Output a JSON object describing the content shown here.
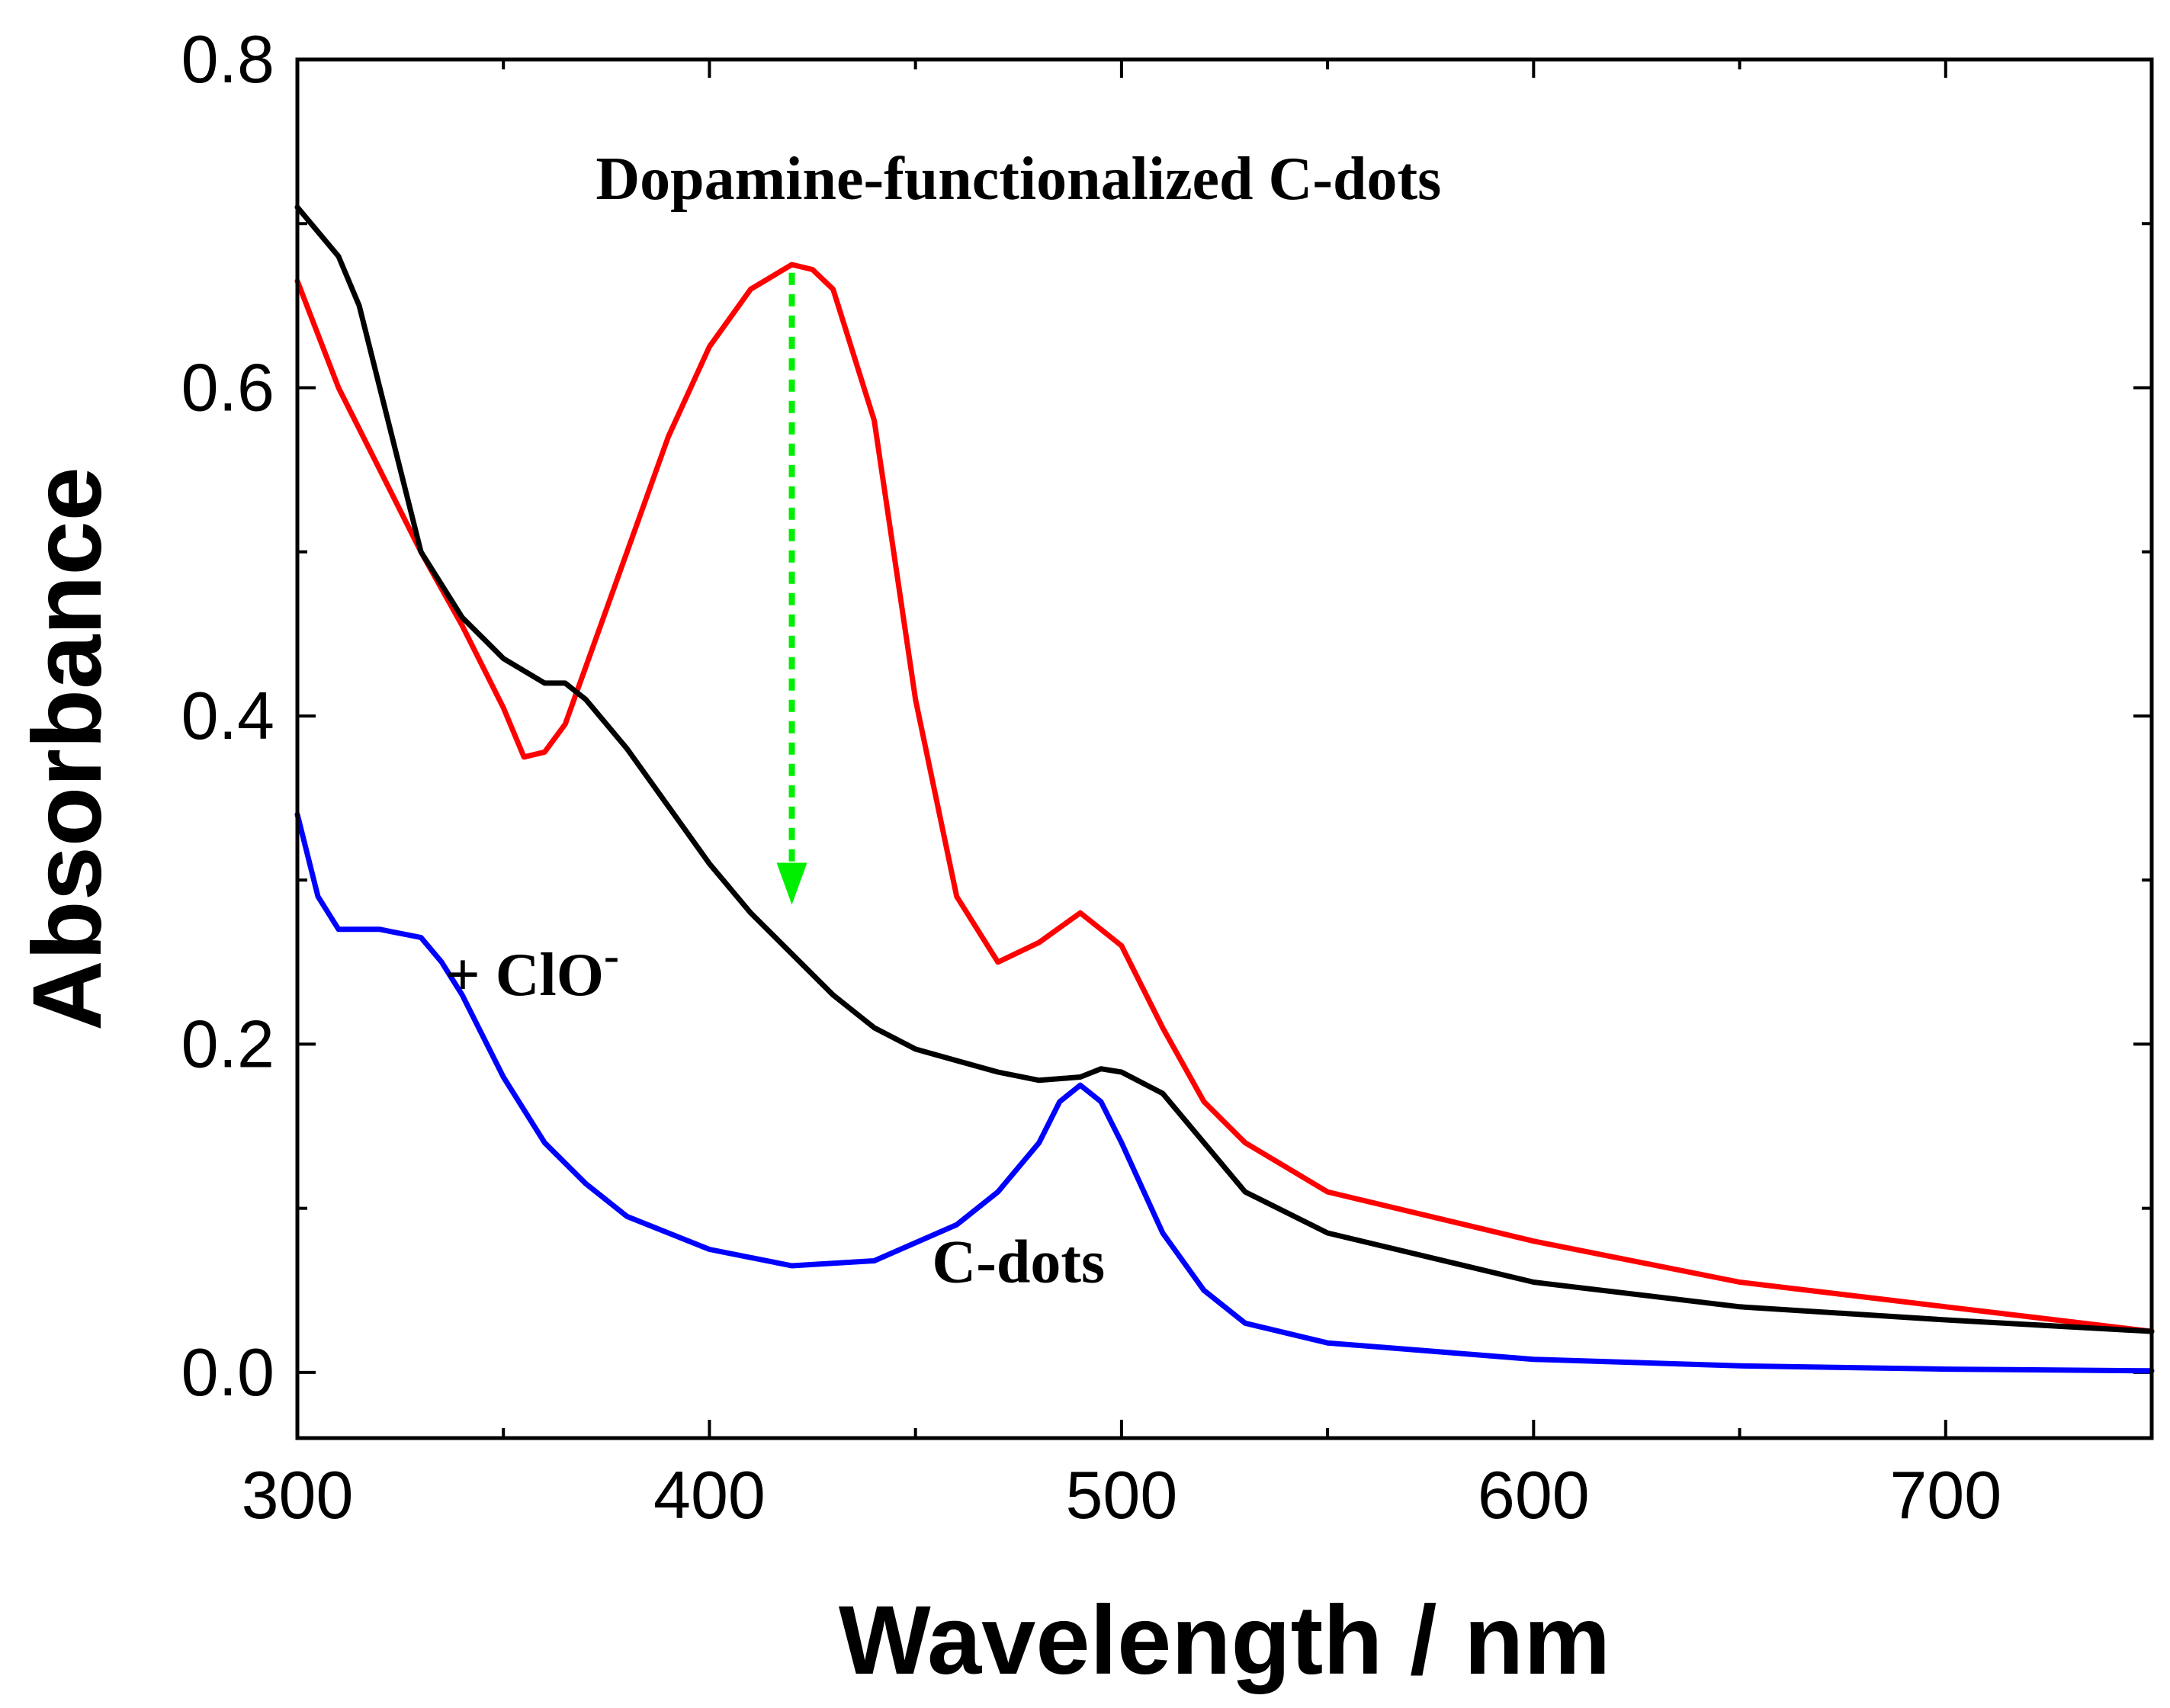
{
  "chart_data": {
    "type": "line",
    "title": "",
    "xlabel": "Wavelength / nm",
    "ylabel": "Absorbance",
    "xlim": [
      300,
      750
    ],
    "ylim": [
      -0.04,
      0.8
    ],
    "xticks": [
      300,
      400,
      500,
      600,
      700
    ],
    "yticks": [
      0.0,
      0.2,
      0.4,
      0.6,
      0.8
    ],
    "xtick_labels": [
      "300",
      "400",
      "500",
      "600",
      "700"
    ],
    "ytick_labels": [
      "0.0",
      "0.2",
      "0.4",
      "0.6",
      "0.8"
    ],
    "x_minor_step": 50,
    "y_minor_step": 0.1,
    "grid": false,
    "series": [
      {
        "name": "Dopamine-functionalized C-dots",
        "color": "#ff0000",
        "x": [
          300,
          310,
          320,
          330,
          340,
          350,
          355,
          360,
          365,
          370,
          380,
          390,
          400,
          410,
          420,
          425,
          430,
          440,
          450,
          460,
          470,
          480,
          490,
          500,
          510,
          520,
          530,
          550,
          600,
          650,
          700,
          750
        ],
        "y": [
          0.665,
          0.6,
          0.55,
          0.5,
          0.455,
          0.405,
          0.375,
          0.378,
          0.395,
          0.43,
          0.5,
          0.57,
          0.625,
          0.66,
          0.675,
          0.672,
          0.66,
          0.58,
          0.41,
          0.29,
          0.25,
          0.262,
          0.28,
          0.26,
          0.21,
          0.165,
          0.14,
          0.11,
          0.08,
          0.055,
          0.04,
          0.025
        ]
      },
      {
        "name": "+ ClO-",
        "color": "#000000",
        "x": [
          300,
          310,
          315,
          320,
          325,
          330,
          340,
          350,
          360,
          365,
          370,
          380,
          390,
          400,
          410,
          420,
          430,
          440,
          450,
          460,
          470,
          480,
          490,
          495,
          500,
          510,
          520,
          530,
          550,
          600,
          650,
          700,
          750
        ],
        "y": [
          0.71,
          0.68,
          0.65,
          0.6,
          0.55,
          0.5,
          0.46,
          0.435,
          0.42,
          0.42,
          0.41,
          0.38,
          0.345,
          0.31,
          0.28,
          0.255,
          0.23,
          0.21,
          0.197,
          0.19,
          0.183,
          0.178,
          0.18,
          0.185,
          0.183,
          0.17,
          0.14,
          0.11,
          0.085,
          0.055,
          0.04,
          0.032,
          0.025
        ]
      },
      {
        "name": "C-dots",
        "color": "#0000ff",
        "x": [
          300,
          305,
          310,
          320,
          330,
          335,
          340,
          350,
          360,
          370,
          380,
          400,
          420,
          440,
          460,
          470,
          480,
          485,
          490,
          495,
          500,
          510,
          520,
          530,
          550,
          600,
          650,
          700,
          750
        ],
        "y": [
          0.34,
          0.29,
          0.27,
          0.27,
          0.265,
          0.25,
          0.23,
          0.18,
          0.14,
          0.115,
          0.095,
          0.075,
          0.065,
          0.068,
          0.09,
          0.11,
          0.14,
          0.165,
          0.175,
          0.165,
          0.14,
          0.085,
          0.05,
          0.03,
          0.018,
          0.008,
          0.004,
          0.002,
          0.001
        ]
      }
    ],
    "annotations": [
      {
        "text": "Dopamine-functionalized C-dots",
        "x": 475,
        "y": 0.715
      },
      {
        "text": "+ ClO",
        "superscript": "-",
        "x": 357,
        "y": 0.23
      },
      {
        "text": "C-dots",
        "x": 475,
        "y": 0.055
      }
    ],
    "arrow": {
      "color": "#00ee00",
      "x": 420,
      "y_from": 0.67,
      "y_to": 0.285
    }
  }
}
